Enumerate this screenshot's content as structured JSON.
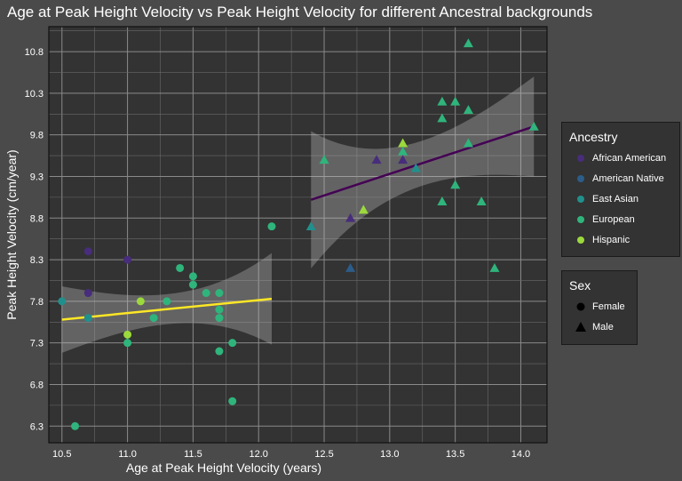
{
  "chart_data": {
    "type": "scatter",
    "title": "Age at Peak Height Velocity vs Peak Height Velocity for different Ancestral backgrounds",
    "xlabel": "Age at Peak Height Velocity (years)",
    "ylabel": "Peak Height Velocity (cm/year)",
    "xlim": [
      10.4,
      14.2
    ],
    "ylim": [
      6.1,
      11.1
    ],
    "x_ticks": [
      10.5,
      11.0,
      11.5,
      12.0,
      12.5,
      13.0,
      13.5,
      14.0
    ],
    "y_ticks": [
      6.3,
      6.8,
      7.3,
      7.8,
      8.3,
      8.8,
      9.3,
      9.8,
      10.3,
      10.8
    ],
    "x_tick_labels": [
      "10.5",
      "11.0",
      "11.5",
      "12.0",
      "12.5",
      "13.0",
      "13.5",
      "14.0"
    ],
    "y_tick_labels": [
      "6.3",
      "6.8",
      "7.3",
      "7.8",
      "8.3",
      "8.8",
      "9.3",
      "9.8",
      "10.3",
      "10.8"
    ],
    "grid": true,
    "colors": {
      "African American": "#472d7b",
      "American Native": "#2c5d8a",
      "East Asian": "#21908d",
      "European": "#2fb47c",
      "Hispanic": "#9bd93c"
    },
    "ancestry_order": [
      "African American",
      "American Native",
      "East Asian",
      "European",
      "Hispanic"
    ],
    "points": [
      {
        "x": 10.5,
        "y": 7.8,
        "ancestry": "East Asian",
        "sex": "Female"
      },
      {
        "x": 10.6,
        "y": 6.3,
        "ancestry": "European",
        "sex": "Female"
      },
      {
        "x": 10.7,
        "y": 8.4,
        "ancestry": "African American",
        "sex": "Female"
      },
      {
        "x": 10.7,
        "y": 7.9,
        "ancestry": "African American",
        "sex": "Female"
      },
      {
        "x": 10.7,
        "y": 7.6,
        "ancestry": "East Asian",
        "sex": "Female"
      },
      {
        "x": 11.0,
        "y": 8.3,
        "ancestry": "African American",
        "sex": "Female"
      },
      {
        "x": 11.0,
        "y": 7.4,
        "ancestry": "Hispanic",
        "sex": "Female"
      },
      {
        "x": 11.0,
        "y": 7.3,
        "ancestry": "European",
        "sex": "Female"
      },
      {
        "x": 11.1,
        "y": 7.8,
        "ancestry": "Hispanic",
        "sex": "Female"
      },
      {
        "x": 11.2,
        "y": 7.6,
        "ancestry": "European",
        "sex": "Female"
      },
      {
        "x": 11.3,
        "y": 7.8,
        "ancestry": "European",
        "sex": "Female"
      },
      {
        "x": 11.4,
        "y": 8.2,
        "ancestry": "European",
        "sex": "Female"
      },
      {
        "x": 11.5,
        "y": 8.1,
        "ancestry": "European",
        "sex": "Female"
      },
      {
        "x": 11.5,
        "y": 8.0,
        "ancestry": "European",
        "sex": "Female"
      },
      {
        "x": 11.6,
        "y": 7.9,
        "ancestry": "European",
        "sex": "Female"
      },
      {
        "x": 11.7,
        "y": 7.9,
        "ancestry": "European",
        "sex": "Female"
      },
      {
        "x": 11.7,
        "y": 7.7,
        "ancestry": "European",
        "sex": "Female"
      },
      {
        "x": 11.7,
        "y": 7.6,
        "ancestry": "European",
        "sex": "Female"
      },
      {
        "x": 11.7,
        "y": 7.2,
        "ancestry": "European",
        "sex": "Female"
      },
      {
        "x": 11.8,
        "y": 7.3,
        "ancestry": "European",
        "sex": "Female"
      },
      {
        "x": 11.8,
        "y": 6.6,
        "ancestry": "European",
        "sex": "Female"
      },
      {
        "x": 12.1,
        "y": 8.7,
        "ancestry": "European",
        "sex": "Female"
      },
      {
        "x": 12.4,
        "y": 8.7,
        "ancestry": "East Asian",
        "sex": "Male"
      },
      {
        "x": 12.5,
        "y": 9.5,
        "ancestry": "European",
        "sex": "Male"
      },
      {
        "x": 12.7,
        "y": 8.8,
        "ancestry": "African American",
        "sex": "Male"
      },
      {
        "x": 12.7,
        "y": 8.2,
        "ancestry": "American Native",
        "sex": "Male"
      },
      {
        "x": 12.8,
        "y": 8.9,
        "ancestry": "Hispanic",
        "sex": "Male"
      },
      {
        "x": 12.9,
        "y": 9.5,
        "ancestry": "African American",
        "sex": "Male"
      },
      {
        "x": 13.1,
        "y": 9.7,
        "ancestry": "Hispanic",
        "sex": "Male"
      },
      {
        "x": 13.1,
        "y": 9.6,
        "ancestry": "European",
        "sex": "Male"
      },
      {
        "x": 13.1,
        "y": 9.5,
        "ancestry": "African American",
        "sex": "Male"
      },
      {
        "x": 13.2,
        "y": 9.4,
        "ancestry": "East Asian",
        "sex": "Male"
      },
      {
        "x": 13.4,
        "y": 10.2,
        "ancestry": "European",
        "sex": "Male"
      },
      {
        "x": 13.4,
        "y": 10.0,
        "ancestry": "European",
        "sex": "Male"
      },
      {
        "x": 13.4,
        "y": 9.0,
        "ancestry": "European",
        "sex": "Male"
      },
      {
        "x": 13.5,
        "y": 10.2,
        "ancestry": "European",
        "sex": "Male"
      },
      {
        "x": 13.5,
        "y": 9.2,
        "ancestry": "European",
        "sex": "Male"
      },
      {
        "x": 13.6,
        "y": 10.9,
        "ancestry": "European",
        "sex": "Male"
      },
      {
        "x": 13.6,
        "y": 10.1,
        "ancestry": "European",
        "sex": "Male"
      },
      {
        "x": 13.6,
        "y": 9.7,
        "ancestry": "European",
        "sex": "Male"
      },
      {
        "x": 13.7,
        "y": 9.0,
        "ancestry": "European",
        "sex": "Male"
      },
      {
        "x": 13.8,
        "y": 8.2,
        "ancestry": "European",
        "sex": "Male"
      },
      {
        "x": 14.1,
        "y": 9.9,
        "ancestry": "European",
        "sex": "Male"
      }
    ],
    "trend_lines": [
      {
        "sex": "Female",
        "color": "#fde725",
        "x": [
          10.5,
          12.1
        ],
        "y": [
          7.58,
          7.83
        ],
        "ci_lower": [
          7.18,
          7.25
        ],
        "ci_upper": [
          7.98,
          8.35
        ]
      },
      {
        "sex": "Male",
        "color": "#440154",
        "x": [
          12.4,
          14.1
        ],
        "y": [
          9.02,
          9.9
        ],
        "ci_lower": [
          8.2,
          9.3
        ],
        "ci_upper": [
          9.85,
          10.5
        ]
      }
    ]
  },
  "legend": {
    "ancestry_title": "Ancestry",
    "ancestry_items": [
      "African American",
      "American Native",
      "East Asian",
      "European",
      "Hispanic"
    ],
    "sex_title": "Sex",
    "sex_items": [
      "Female",
      "Male"
    ]
  }
}
